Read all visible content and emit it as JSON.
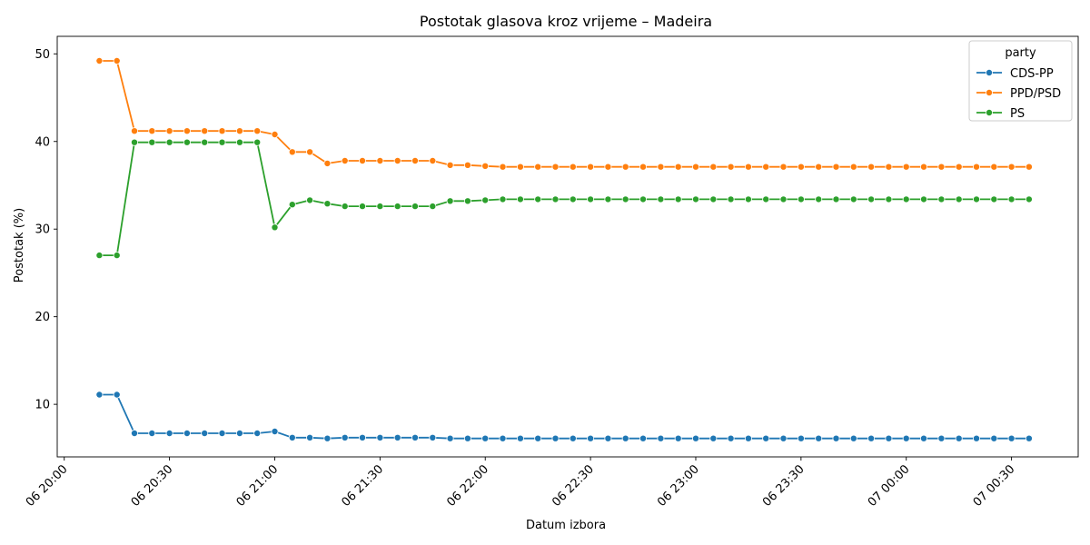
{
  "chart_data": {
    "type": "line",
    "title": "Postotak glasova kroz vrijeme – Madeira",
    "xlabel": "Datum izbora",
    "ylabel": "Postotak (%)",
    "x_range": [
      "06 19:58",
      "07 00:49"
    ],
    "ylim": [
      4,
      52
    ],
    "yticks": [
      10,
      20,
      30,
      40,
      50
    ],
    "xticks": [
      {
        "t": "06 20:00",
        "label": "06 20:00"
      },
      {
        "t": "06 20:30",
        "label": "06 20:30"
      },
      {
        "t": "06 21:00",
        "label": "06 21:00"
      },
      {
        "t": "06 21:30",
        "label": "06 21:30"
      },
      {
        "t": "06 22:00",
        "label": "06 22:00"
      },
      {
        "t": "06 22:30",
        "label": "06 22:30"
      },
      {
        "t": "06 23:00",
        "label": "06 23:00"
      },
      {
        "t": "06 23:30",
        "label": "06 23:30"
      },
      {
        "t": "07 00:00",
        "label": "07 00:00"
      },
      {
        "t": "07 00:30",
        "label": "07 00:30"
      }
    ],
    "x": [
      "06 20:10",
      "06 20:15",
      "06 20:20",
      "06 20:25",
      "06 20:30",
      "06 20:35",
      "06 20:40",
      "06 20:45",
      "06 20:50",
      "06 20:55",
      "06 21:00",
      "06 21:05",
      "06 21:10",
      "06 21:15",
      "06 21:20",
      "06 21:25",
      "06 21:30",
      "06 21:35",
      "06 21:40",
      "06 21:45",
      "06 21:50",
      "06 21:55",
      "06 22:00",
      "06 22:05",
      "06 22:10",
      "06 22:15",
      "06 22:20",
      "06 22:25",
      "06 22:30",
      "06 22:35",
      "06 22:40",
      "06 22:45",
      "06 22:50",
      "06 22:55",
      "06 23:00",
      "06 23:05",
      "06 23:10",
      "06 23:15",
      "06 23:20",
      "06 23:25",
      "06 23:30",
      "06 23:35",
      "06 23:40",
      "06 23:45",
      "06 23:50",
      "06 23:55",
      "07 00:00",
      "07 00:05",
      "07 00:10",
      "07 00:15",
      "07 00:20",
      "07 00:25",
      "07 00:30",
      "07 00:35"
    ],
    "legend": {
      "title": "party",
      "position": "top-right"
    },
    "grid": false,
    "series": [
      {
        "name": "CDS-PP",
        "color": "#1f77b4",
        "values": [
          11.1,
          11.1,
          6.7,
          6.7,
          6.7,
          6.7,
          6.7,
          6.7,
          6.7,
          6.7,
          6.9,
          6.2,
          6.2,
          6.1,
          6.2,
          6.2,
          6.2,
          6.2,
          6.2,
          6.2,
          6.1,
          6.1,
          6.1,
          6.1,
          6.1,
          6.1,
          6.1,
          6.1,
          6.1,
          6.1,
          6.1,
          6.1,
          6.1,
          6.1,
          6.1,
          6.1,
          6.1,
          6.1,
          6.1,
          6.1,
          6.1,
          6.1,
          6.1,
          6.1,
          6.1,
          6.1,
          6.1,
          6.1,
          6.1,
          6.1,
          6.1,
          6.1,
          6.1,
          6.1
        ]
      },
      {
        "name": "PPD/PSD",
        "color": "#ff7f0e",
        "values": [
          49.2,
          49.2,
          41.2,
          41.2,
          41.2,
          41.2,
          41.2,
          41.2,
          41.2,
          41.2,
          40.8,
          38.8,
          38.8,
          37.5,
          37.8,
          37.8,
          37.8,
          37.8,
          37.8,
          37.8,
          37.3,
          37.3,
          37.2,
          37.1,
          37.1,
          37.1,
          37.1,
          37.1,
          37.1,
          37.1,
          37.1,
          37.1,
          37.1,
          37.1,
          37.1,
          37.1,
          37.1,
          37.1,
          37.1,
          37.1,
          37.1,
          37.1,
          37.1,
          37.1,
          37.1,
          37.1,
          37.1,
          37.1,
          37.1,
          37.1,
          37.1,
          37.1,
          37.1,
          37.1
        ]
      },
      {
        "name": "PS",
        "color": "#2ca02c",
        "values": [
          27.0,
          27.0,
          39.9,
          39.9,
          39.9,
          39.9,
          39.9,
          39.9,
          39.9,
          39.9,
          30.2,
          32.8,
          33.3,
          32.9,
          32.6,
          32.6,
          32.6,
          32.6,
          32.6,
          32.6,
          33.2,
          33.2,
          33.3,
          33.4,
          33.4,
          33.4,
          33.4,
          33.4,
          33.4,
          33.4,
          33.4,
          33.4,
          33.4,
          33.4,
          33.4,
          33.4,
          33.4,
          33.4,
          33.4,
          33.4,
          33.4,
          33.4,
          33.4,
          33.4,
          33.4,
          33.4,
          33.4,
          33.4,
          33.4,
          33.4,
          33.4,
          33.4,
          33.4,
          33.4
        ]
      }
    ]
  }
}
